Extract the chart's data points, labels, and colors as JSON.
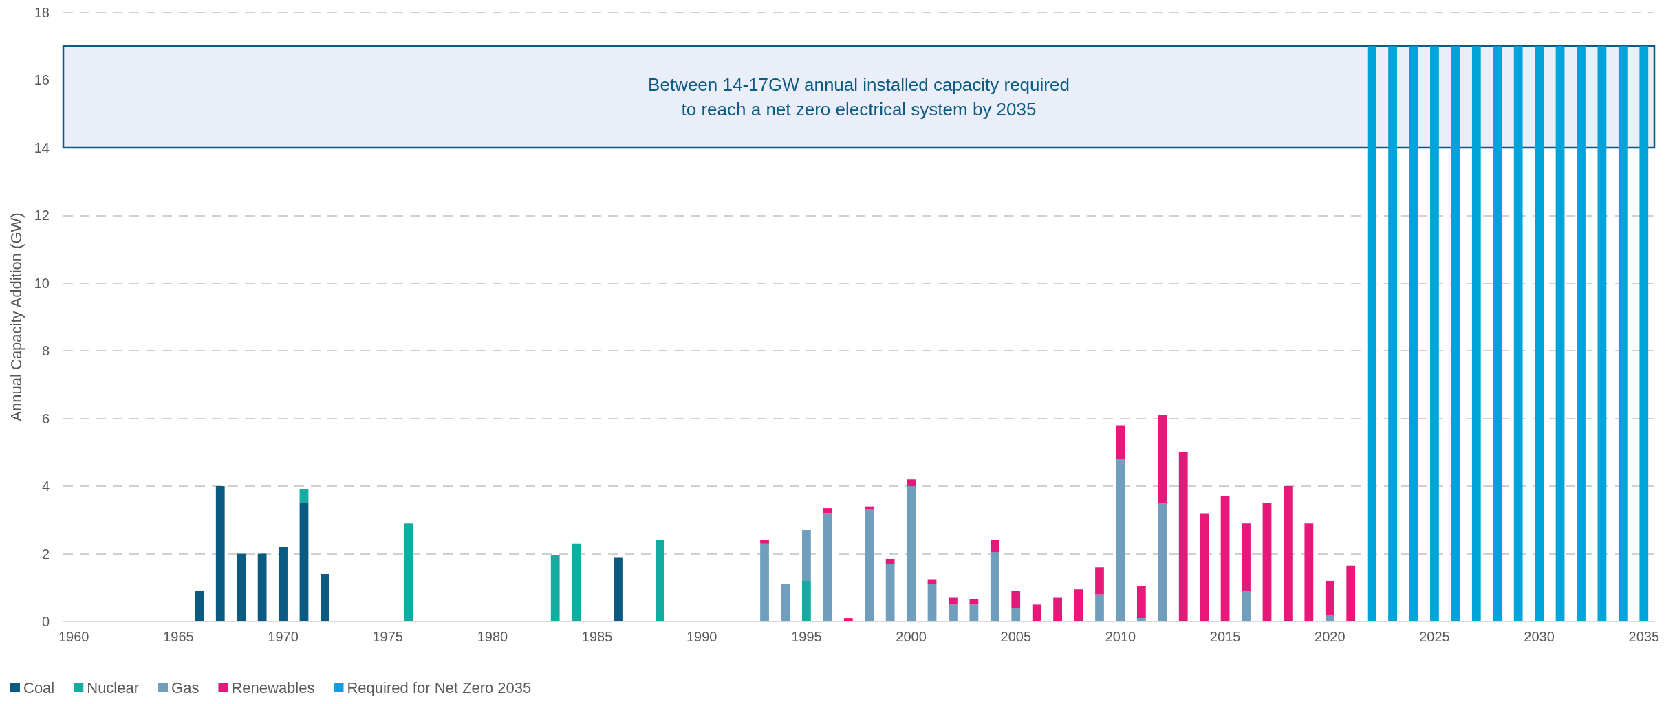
{
  "chart_data": {
    "type": "bar",
    "ylabel": "Annual Capacity Addition (GW)",
    "categories": [
      "1960",
      null,
      null,
      null,
      null,
      "1965",
      null,
      null,
      null,
      null,
      "1970",
      null,
      null,
      null,
      null,
      "1975",
      null,
      null,
      null,
      null,
      "1980",
      null,
      null,
      null,
      null,
      "1985",
      null,
      null,
      null,
      null,
      "1990",
      null,
      null,
      null,
      null,
      "1995",
      null,
      null,
      null,
      null,
      "2000",
      null,
      null,
      null,
      null,
      "2005",
      null,
      null,
      null,
      null,
      "2010",
      null,
      null,
      null,
      null,
      "2015",
      null,
      null,
      null,
      null,
      "2020",
      null,
      null,
      null,
      null,
      "2025",
      null,
      null,
      null,
      null,
      "2030",
      null,
      null,
      null,
      null,
      "2035"
    ],
    "ylim": [
      0,
      18
    ],
    "yticks": [
      0,
      2,
      4,
      6,
      8,
      10,
      12,
      14,
      16,
      18
    ],
    "stacked": true,
    "grid": "y",
    "legend": "bottom left",
    "series": [
      {
        "name": "Coal",
        "color": "#0b5a82",
        "values": [
          null,
          null,
          null,
          null,
          null,
          null,
          0.9,
          4.0,
          2.0,
          2.0,
          2.2,
          3.5,
          1.4,
          null,
          null,
          null,
          null,
          null,
          null,
          null,
          null,
          null,
          null,
          null,
          null,
          null,
          1.9,
          null,
          null,
          null,
          null,
          null,
          null,
          null,
          null,
          null,
          null,
          null,
          null,
          null,
          null,
          null,
          null,
          null,
          null,
          null,
          null,
          null,
          null,
          null,
          null,
          null,
          null,
          null,
          null,
          null,
          null,
          null,
          null,
          null,
          null,
          null,
          null,
          null,
          null,
          null,
          null,
          null,
          null,
          null,
          null,
          null,
          null,
          null,
          null,
          null
        ]
      },
      {
        "name": "Nuclear",
        "color": "#14aca0",
        "values": [
          null,
          null,
          null,
          null,
          null,
          null,
          null,
          null,
          null,
          null,
          null,
          0.4,
          null,
          null,
          null,
          null,
          2.9,
          null,
          null,
          null,
          null,
          null,
          null,
          1.95,
          2.3,
          null,
          null,
          null,
          2.4,
          null,
          null,
          null,
          null,
          null,
          null,
          1.2,
          null,
          null,
          null,
          null,
          null,
          null,
          null,
          null,
          null,
          null,
          null,
          null,
          null,
          null,
          null,
          null,
          null,
          null,
          null,
          null,
          null,
          null,
          null,
          null,
          null,
          null,
          null,
          null,
          null,
          null,
          null,
          null,
          null,
          null,
          null,
          null,
          null,
          null,
          null,
          null
        ]
      },
      {
        "name": "Gas",
        "color": "#6f9fbd",
        "values": [
          null,
          null,
          null,
          null,
          null,
          null,
          null,
          null,
          null,
          null,
          null,
          null,
          null,
          null,
          null,
          null,
          null,
          null,
          null,
          null,
          null,
          null,
          null,
          null,
          null,
          null,
          null,
          null,
          null,
          null,
          null,
          null,
          null,
          2.3,
          1.1,
          1.5,
          3.2,
          null,
          3.3,
          1.7,
          4.0,
          1.1,
          0.5,
          0.5,
          2.05,
          0.4,
          null,
          null,
          null,
          0.8,
          4.8,
          0.1,
          3.5,
          null,
          null,
          null,
          0.9,
          null,
          null,
          null,
          0.2,
          null,
          null,
          null,
          null,
          null,
          null,
          null,
          null,
          null,
          null,
          null,
          null,
          null,
          null,
          null
        ]
      },
      {
        "name": "Renewables",
        "color": "#e6197a",
        "values": [
          null,
          null,
          null,
          null,
          null,
          null,
          null,
          null,
          null,
          null,
          null,
          null,
          null,
          null,
          null,
          null,
          null,
          null,
          null,
          null,
          null,
          null,
          null,
          null,
          null,
          null,
          null,
          null,
          null,
          null,
          null,
          null,
          null,
          0.1,
          null,
          null,
          0.15,
          0.1,
          0.1,
          0.15,
          0.2,
          0.15,
          0.2,
          0.15,
          0.35,
          0.5,
          0.5,
          0.7,
          0.95,
          0.8,
          1.0,
          0.95,
          2.6,
          5.0,
          3.2,
          3.7,
          2.0,
          3.5,
          4.0,
          2.9,
          1.0,
          1.65,
          null,
          null,
          null,
          null,
          null,
          null,
          null,
          null,
          null,
          null,
          null,
          null,
          null,
          null
        ]
      },
      {
        "name": "Required for Net Zero 2035",
        "color": "#00a3da",
        "values": [
          null,
          null,
          null,
          null,
          null,
          null,
          null,
          null,
          null,
          null,
          null,
          null,
          null,
          null,
          null,
          null,
          null,
          null,
          null,
          null,
          null,
          null,
          null,
          null,
          null,
          null,
          null,
          null,
          null,
          null,
          null,
          null,
          null,
          null,
          null,
          null,
          null,
          null,
          null,
          null,
          null,
          null,
          null,
          null,
          null,
          null,
          null,
          null,
          null,
          null,
          null,
          null,
          null,
          null,
          null,
          null,
          null,
          null,
          null,
          null,
          null,
          null,
          17,
          17,
          17,
          17,
          17,
          17,
          17,
          17,
          17,
          17,
          17,
          17,
          17,
          17
        ]
      }
    ],
    "bands": [
      {
        "axis": "y",
        "from": 14,
        "to": 17,
        "label": "Between 14-17GW annual installed capacity required\nto reach a net zero electrical system by 2035",
        "color": "#e9eef8"
      }
    ]
  }
}
